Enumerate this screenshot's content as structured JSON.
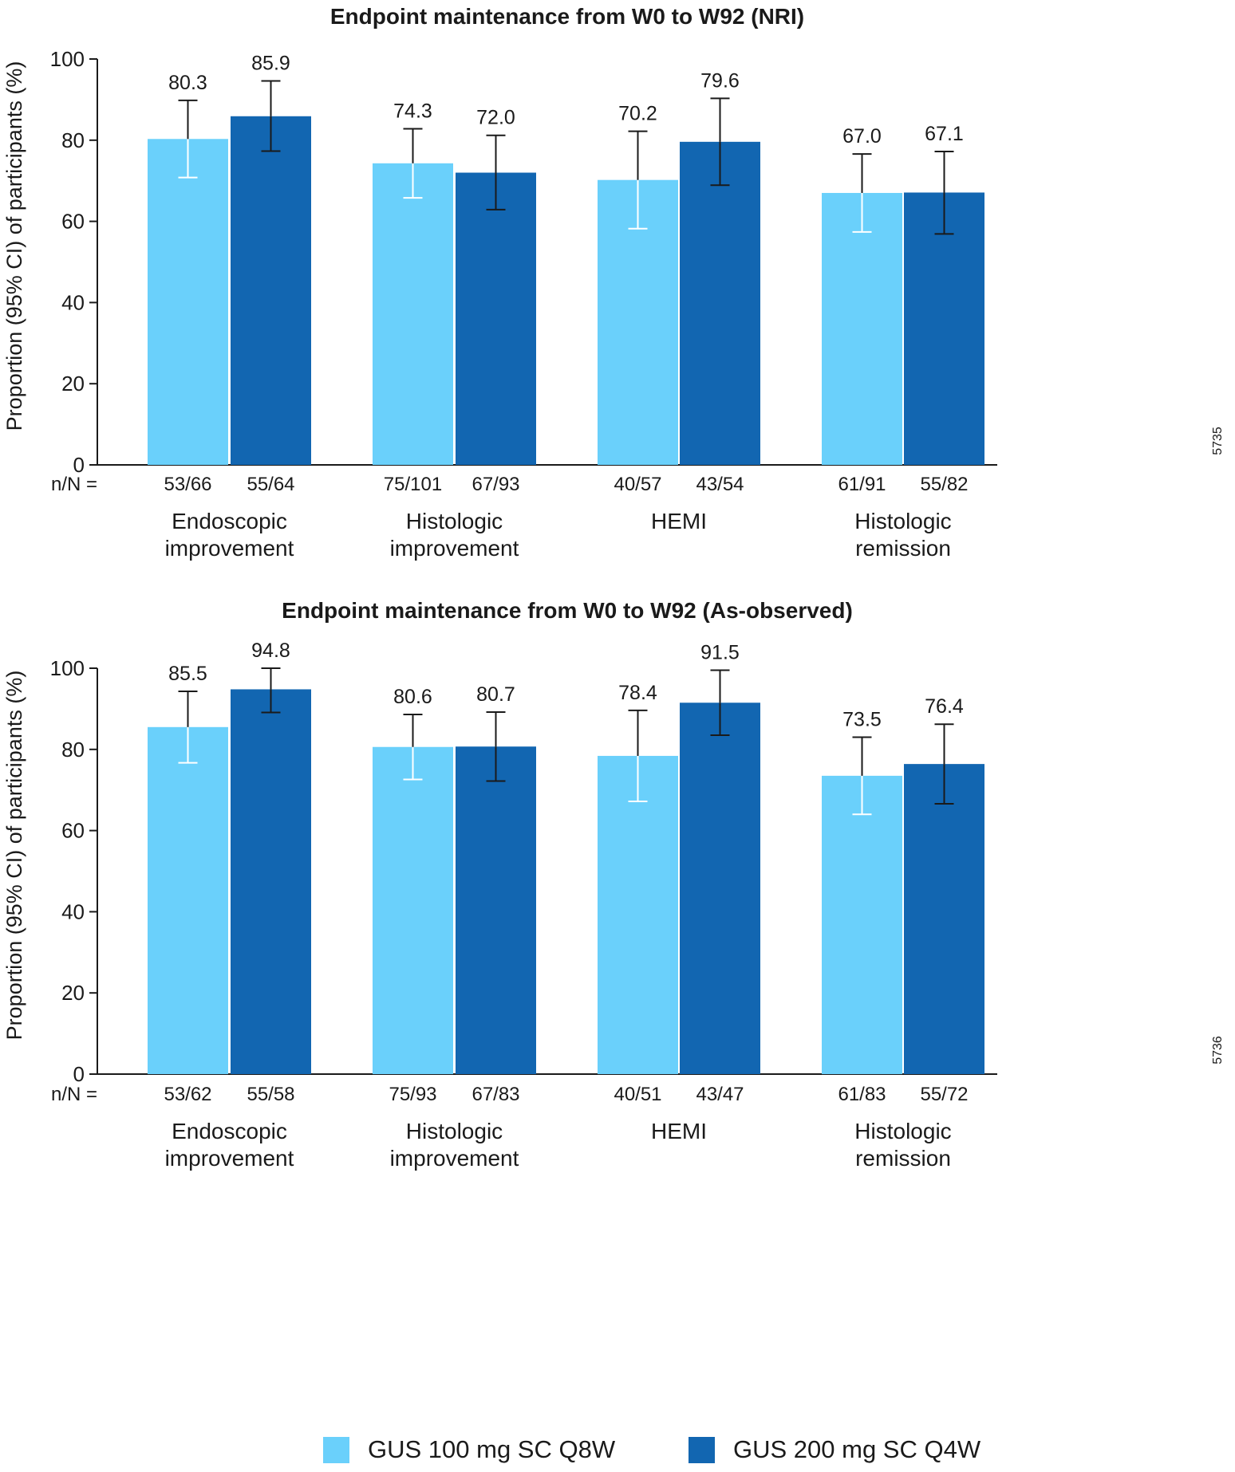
{
  "colors": {
    "light": "#6ad0fb",
    "dark": "#1266b1",
    "axis": "#1a1a1a"
  },
  "chart_data": [
    {
      "type": "bar",
      "title": "Endpoint maintenance from W0 to W92 (NRI)",
      "ylabel": "Proportion (95% CI) of participants (%)",
      "ylim": [
        0,
        100
      ],
      "yticks": [
        0,
        20,
        40,
        60,
        80,
        100
      ],
      "side_code": "5735",
      "nN_prefix": "n/N =",
      "categories": [
        [
          "Endoscopic",
          "improvement"
        ],
        [
          "Histologic",
          "improvement"
        ],
        [
          "HEMI"
        ],
        [
          "Histologic",
          "remission"
        ]
      ],
      "series": [
        {
          "name": "GUS 100 mg SC Q8W",
          "values": [
            80.3,
            74.3,
            70.2,
            67.0
          ],
          "labels": [
            "80.3",
            "74.3",
            "70.2",
            "67.0"
          ],
          "ci_low": [
            70.8,
            65.8,
            58.2,
            57.4
          ],
          "ci_high": [
            89.8,
            82.8,
            82.2,
            76.6
          ],
          "nN": [
            "53/66",
            "75/101",
            "40/57",
            "61/91"
          ]
        },
        {
          "name": "GUS 200 mg SC Q4W",
          "values": [
            85.9,
            72.0,
            79.6,
            67.1
          ],
          "labels": [
            "85.9",
            "72.0",
            "79.6",
            "67.1"
          ],
          "ci_low": [
            77.3,
            62.9,
            68.9,
            56.9
          ],
          "ci_high": [
            94.6,
            81.2,
            90.3,
            77.2
          ],
          "nN": [
            "55/64",
            "67/93",
            "43/54",
            "55/82"
          ]
        }
      ]
    },
    {
      "type": "bar",
      "title": "Endpoint maintenance from W0 to W92 (As-observed)",
      "ylabel": "Proportion (95% CI) of participants (%)",
      "ylim": [
        0,
        100
      ],
      "yticks": [
        0,
        20,
        40,
        60,
        80,
        100
      ],
      "side_code": "5736",
      "nN_prefix": "n/N =",
      "categories": [
        [
          "Endoscopic",
          "improvement"
        ],
        [
          "Histologic",
          "improvement"
        ],
        [
          "HEMI"
        ],
        [
          "Histologic",
          "remission"
        ]
      ],
      "series": [
        {
          "name": "GUS 100 mg SC Q8W",
          "values": [
            85.5,
            80.6,
            78.4,
            73.5
          ],
          "labels": [
            "85.5",
            "80.6",
            "78.4",
            "73.5"
          ],
          "ci_low": [
            76.7,
            72.6,
            67.2,
            64.0
          ],
          "ci_high": [
            94.3,
            88.6,
            89.6,
            83.0
          ],
          "nN": [
            "53/62",
            "75/93",
            "40/51",
            "61/83"
          ]
        },
        {
          "name": "GUS 200 mg SC Q4W",
          "values": [
            94.8,
            80.7,
            91.5,
            76.4
          ],
          "labels": [
            "94.8",
            "80.7",
            "91.5",
            "76.4"
          ],
          "ci_low": [
            89.1,
            72.2,
            83.5,
            66.6
          ],
          "ci_high": [
            100.0,
            89.2,
            99.5,
            86.2
          ],
          "nN": [
            "55/58",
            "67/83",
            "43/47",
            "55/72"
          ]
        }
      ]
    }
  ],
  "legend": [
    {
      "label": "GUS 100 mg SC Q8W",
      "color": "#6ad0fb"
    },
    {
      "label": "GUS 200 mg SC Q4W",
      "color": "#1266b1"
    }
  ]
}
